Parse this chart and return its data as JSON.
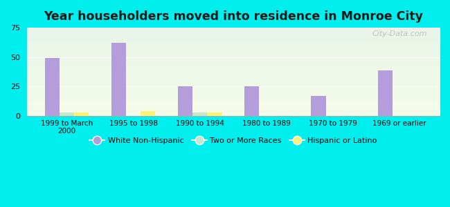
{
  "title": "Year householders moved into residence in Monroe City",
  "categories": [
    "1999 to March\n2000",
    "1995 to 1998",
    "1990 to 1994",
    "1980 to 1989",
    "1970 to 1979",
    "1969 or earlier"
  ],
  "series": {
    "White Non-Hispanic": [
      49,
      62,
      25,
      25,
      17,
      39
    ],
    "Two or More Races": [
      3,
      0,
      3,
      0,
      0,
      0
    ],
    "Hispanic or Latino": [
      3,
      4,
      3,
      0,
      0,
      0
    ]
  },
  "colors": {
    "White Non-Hispanic": "#b39ddb",
    "Two or More Races": "#c8e6c9",
    "Hispanic or Latino": "#fff176"
  },
  "ylim": [
    0,
    75
  ],
  "yticks": [
    0,
    25,
    50,
    75
  ],
  "background_color": "#00eeee",
  "plot_bg_top": "#e8f5e9",
  "plot_bg_bottom": "#f5fbe8",
  "bar_width": 0.22,
  "watermark": "City-Data.com"
}
